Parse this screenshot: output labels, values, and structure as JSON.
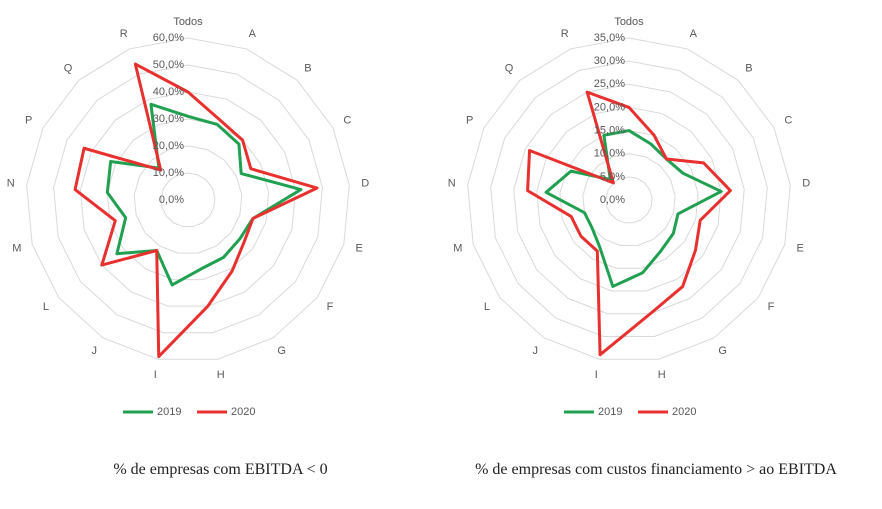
{
  "chart_data": [
    {
      "type": "radar",
      "title": "% de empresas com EBITDA < 0",
      "categories": [
        "Todos",
        "A",
        "B",
        "C",
        "D",
        "E",
        "F",
        "G",
        "H",
        "I",
        "J",
        "L",
        "M",
        "N",
        "P",
        "Q",
        "R"
      ],
      "series": [
        {
          "name": "2019",
          "color": "#20a050",
          "values": [
            31,
            30,
            28,
            22,
            42,
            25,
            24,
            25,
            26,
            32,
            22,
            33,
            24,
            30,
            32,
            16,
            38
          ]
        },
        {
          "name": "2020",
          "color": "#e8302e",
          "values": [
            40,
            32,
            30,
            26,
            48,
            25,
            26,
            31,
            40,
            59,
            22,
            40,
            28,
            42,
            43,
            15,
            54
          ]
        }
      ],
      "rlim": [
        0,
        60
      ],
      "rticks": [
        {
          "value": 0,
          "label": "0,0%"
        },
        {
          "value": 10,
          "label": "10,0%"
        },
        {
          "value": 20,
          "label": "20,0%"
        },
        {
          "value": 30,
          "label": "30,0%"
        },
        {
          "value": 40,
          "label": "40,0%"
        },
        {
          "value": 50,
          "label": "50,0%"
        },
        {
          "value": 60,
          "label": "60,0%"
        }
      ],
      "grid": true
    },
    {
      "type": "radar",
      "title": "% de empresas com custos financiamento > ao EBITDA",
      "categories": [
        "Todos",
        "A",
        "B",
        "C",
        "D",
        "E",
        "F",
        "G",
        "H",
        "I",
        "J",
        "L",
        "M",
        "N",
        "P",
        "Q",
        "R"
      ],
      "series": [
        {
          "name": "2019",
          "color": "#20a050",
          "values": [
            15,
            13,
            12,
            13,
            20,
            11,
            12,
            13,
            16,
            19,
            12,
            10,
            10,
            18,
            14,
            6,
            15
          ]
        },
        {
          "name": "2020",
          "color": "#e8302e",
          "values": [
            20,
            15,
            12,
            18,
            22,
            16,
            18,
            22,
            25,
            34,
            13,
            13,
            13,
            22,
            24,
            5,
            25
          ]
        }
      ],
      "rlim": [
        0,
        35
      ],
      "rticks": [
        {
          "value": 0,
          "label": "0,0%"
        },
        {
          "value": 5,
          "label": "5,0%"
        },
        {
          "value": 10,
          "label": "10,0%"
        },
        {
          "value": 15,
          "label": "15,0%"
        },
        {
          "value": 20,
          "label": "20,0%"
        },
        {
          "value": 25,
          "label": "25,0%"
        },
        {
          "value": 30,
          "label": "30,0%"
        },
        {
          "value": 35,
          "label": "35,0%"
        }
      ],
      "grid": true
    }
  ]
}
